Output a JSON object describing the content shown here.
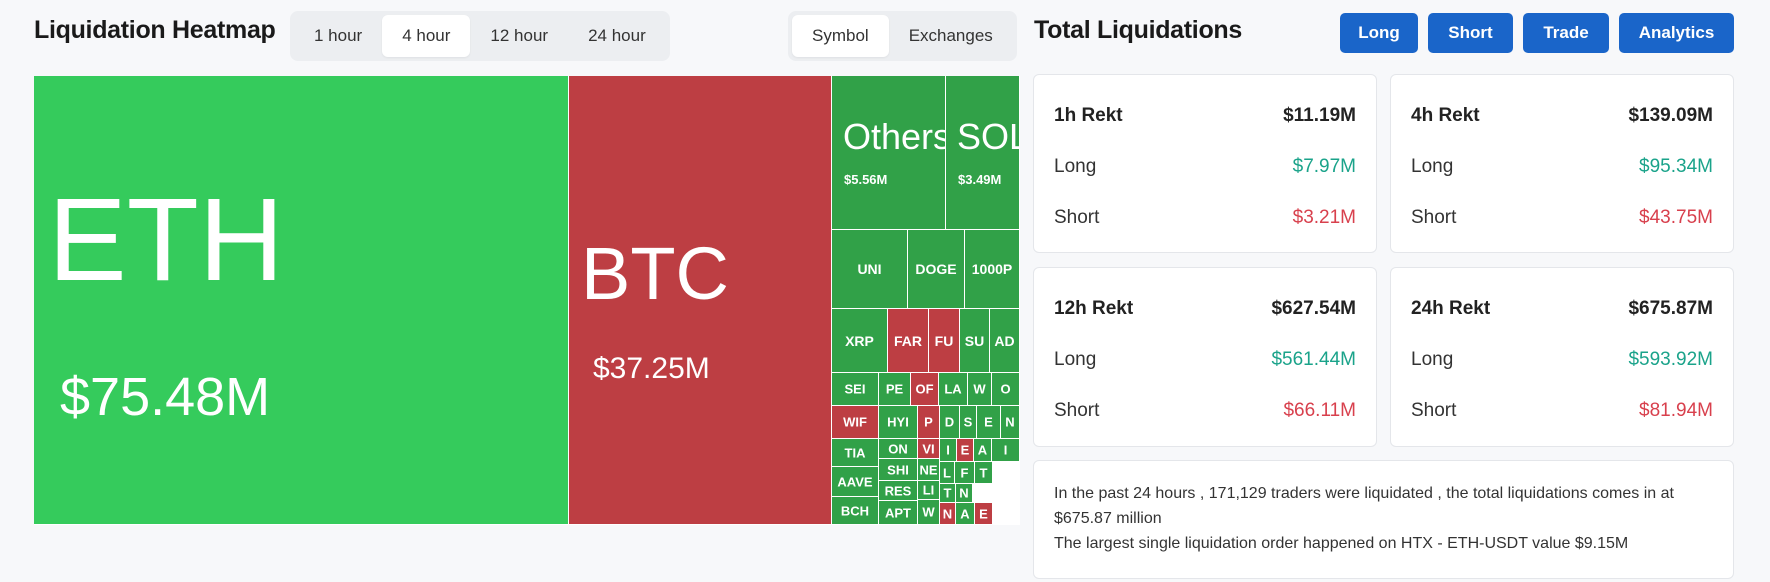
{
  "heatmap": {
    "title": "Liquidation Heatmap",
    "time_tabs": [
      "1 hour",
      "4 hour",
      "12 hour",
      "24 hour"
    ],
    "active_time_tab": "4 hour",
    "view_tabs": [
      "Symbol",
      "Exchanges"
    ],
    "active_view_tab": "Symbol",
    "tiles": [
      {
        "symbol": "ETH",
        "value": "$75.48M",
        "side": "long"
      },
      {
        "symbol": "BTC",
        "value": "$37.25M",
        "side": "short"
      },
      {
        "symbol": "Others",
        "value": "$5.56M",
        "side": "long"
      },
      {
        "symbol": "SOL",
        "value": "$3.49M",
        "side": "long"
      },
      {
        "symbol": "UNI",
        "side": "long"
      },
      {
        "symbol": "DOGE",
        "side": "long"
      },
      {
        "symbol": "1000P",
        "side": "long"
      },
      {
        "symbol": "XRP",
        "side": "long"
      },
      {
        "symbol": "FAR",
        "side": "short"
      },
      {
        "symbol": "FU",
        "side": "short"
      },
      {
        "symbol": "SU",
        "side": "long"
      },
      {
        "symbol": "AD",
        "side": "long"
      },
      {
        "symbol": "SEI",
        "side": "long"
      },
      {
        "symbol": "PE",
        "side": "long"
      },
      {
        "symbol": "OF",
        "side": "short"
      },
      {
        "symbol": "LA",
        "side": "long"
      },
      {
        "symbol": "W",
        "side": "long"
      },
      {
        "symbol": "O",
        "side": "long"
      },
      {
        "symbol": "WIF",
        "side": "short"
      },
      {
        "symbol": "HYI",
        "side": "long"
      },
      {
        "symbol": "P",
        "side": "short"
      },
      {
        "symbol": "D",
        "side": "long"
      },
      {
        "symbol": "S",
        "side": "long"
      },
      {
        "symbol": "E",
        "side": "long"
      },
      {
        "symbol": "N",
        "side": "long"
      },
      {
        "symbol": "TIA",
        "side": "long"
      },
      {
        "symbol": "ON",
        "side": "long"
      },
      {
        "symbol": "VI",
        "side": "short"
      },
      {
        "symbol": "I",
        "side": "long"
      },
      {
        "symbol": "E",
        "side": "short"
      },
      {
        "symbol": "A",
        "side": "long"
      },
      {
        "symbol": "I",
        "side": "long"
      },
      {
        "symbol": "SHI",
        "side": "long"
      },
      {
        "symbol": "AAVE",
        "side": "long"
      },
      {
        "symbol": "NE",
        "side": "long"
      },
      {
        "symbol": "L",
        "side": "long"
      },
      {
        "symbol": "F",
        "side": "long"
      },
      {
        "symbol": "T",
        "side": "long"
      },
      {
        "symbol": "RES",
        "side": "long"
      },
      {
        "symbol": "LI",
        "side": "long"
      },
      {
        "symbol": "T",
        "side": "long"
      },
      {
        "symbol": "N",
        "side": "long"
      },
      {
        "symbol": "BCH",
        "side": "long"
      },
      {
        "symbol": "APT",
        "side": "long"
      },
      {
        "symbol": "W",
        "side": "long"
      },
      {
        "symbol": "N",
        "side": "short"
      },
      {
        "symbol": "A",
        "side": "long"
      },
      {
        "symbol": "E",
        "side": "short"
      }
    ]
  },
  "totals": {
    "title": "Total Liquidations",
    "buttons": [
      "Long",
      "Short",
      "Trade",
      "Analytics"
    ],
    "cards": [
      {
        "title": "1h Rekt",
        "total": "$11.19M",
        "long_label": "Long",
        "long": "$7.97M",
        "short_label": "Short",
        "short": "$3.21M"
      },
      {
        "title": "4h Rekt",
        "total": "$139.09M",
        "long_label": "Long",
        "long": "$95.34M",
        "short_label": "Short",
        "short": "$43.75M"
      },
      {
        "title": "12h Rekt",
        "total": "$627.54M",
        "long_label": "Long",
        "long": "$561.44M",
        "short_label": "Short",
        "short": "$66.11M"
      },
      {
        "title": "24h Rekt",
        "total": "$675.87M",
        "long_label": "Long",
        "long": "$593.92M",
        "short_label": "Short",
        "short": "$81.94M"
      }
    ],
    "summary_line1": "In the past 24 hours , 171,129 traders were liquidated , the total liquidations comes in at $675.87 million",
    "summary_line2": "The largest single liquidation order happened on HTX - ETH-USDT value $9.15M"
  },
  "colors": {
    "long": "#31a148",
    "long_main": "#35cb5c",
    "short": "#bd3e43",
    "button": "#1a65c9",
    "long_text": "#1aa38a",
    "short_text": "#d8404d"
  }
}
